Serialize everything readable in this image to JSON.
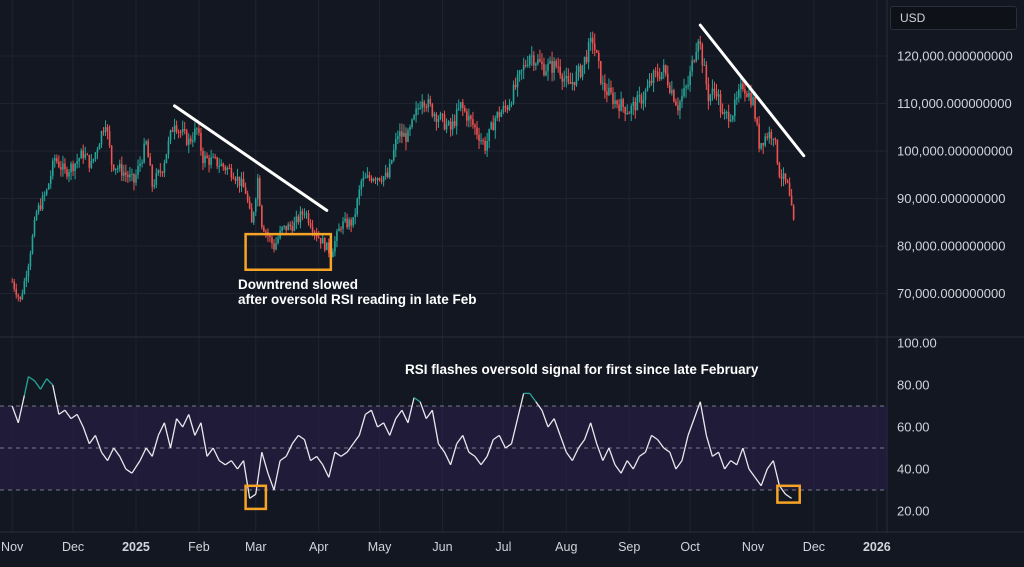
{
  "currency_label": "USD",
  "chart_data": [
    {
      "type": "candlestick",
      "price_axis_ticks": [
        "120,000.000000000",
        "110,000.000000000",
        "100,000.000000000",
        "90,000.000000000",
        "80,000.000000000",
        "70,000.000000000"
      ],
      "ylim": [
        64000,
        128000
      ],
      "x_ticks": [
        "Nov",
        "Dec",
        "2025",
        "Feb",
        "Mar",
        "Apr",
        "May",
        "Jun",
        "Jul",
        "Aug",
        "Sep",
        "Oct",
        "Nov",
        "Dec",
        "2026"
      ],
      "annotation": {
        "line1": "Downtrend slowed",
        "line2": "after oversold RSI reading in late Feb"
      },
      "trendlines": [
        {
          "from": {
            "date": "2025-01-20",
            "value": 109500
          },
          "to": {
            "date": "2025-04-05",
            "value": 87500
          }
        },
        {
          "from": {
            "date": "2025-10-06",
            "value": 126500
          },
          "to": {
            "date": "2025-11-26",
            "value": 99000
          }
        }
      ],
      "highlight": {
        "from": "2025-02-24",
        "to": "2025-04-07",
        "low": 75000,
        "high": 82500
      },
      "closes": [
        [
          "2024-11-01",
          72500
        ],
        [
          "2024-11-05",
          68500
        ],
        [
          "2024-11-09",
          76500
        ],
        [
          "2024-11-13",
          87000
        ],
        [
          "2024-11-18",
          91500
        ],
        [
          "2024-11-22",
          98500
        ],
        [
          "2024-11-27",
          95500
        ],
        [
          "2024-12-02",
          97500
        ],
        [
          "2024-12-06",
          99500
        ],
        [
          "2024-12-10",
          97000
        ],
        [
          "2024-12-17",
          106500
        ],
        [
          "2024-12-20",
          97500
        ],
        [
          "2024-12-26",
          95500
        ],
        [
          "2024-12-31",
          93500
        ],
        [
          "2025-01-06",
          101500
        ],
        [
          "2025-01-09",
          92800
        ],
        [
          "2025-01-14",
          96500
        ],
        [
          "2025-01-20",
          106500
        ],
        [
          "2025-01-22",
          104500
        ],
        [
          "2025-01-27",
          102000
        ],
        [
          "2025-01-31",
          104500
        ],
        [
          "2025-02-03",
          98500
        ],
        [
          "2025-02-10",
          97500
        ],
        [
          "2025-02-18",
          95500
        ],
        [
          "2025-02-24",
          91500
        ],
        [
          "2025-02-27",
          84500
        ],
        [
          "2025-03-02",
          94200
        ],
        [
          "2025-03-04",
          84800
        ],
        [
          "2025-03-10",
          79800
        ],
        [
          "2025-03-14",
          83500
        ],
        [
          "2025-03-20",
          84500
        ],
        [
          "2025-03-25",
          87500
        ],
        [
          "2025-03-31",
          82500
        ],
        [
          "2025-04-07",
          78500
        ],
        [
          "2025-04-12",
          84500
        ],
        [
          "2025-04-18",
          85000
        ],
        [
          "2025-04-22",
          93500
        ],
        [
          "2025-04-28",
          94800
        ],
        [
          "2025-05-05",
          94500
        ],
        [
          "2025-05-10",
          103500
        ],
        [
          "2025-05-15",
          103000
        ],
        [
          "2025-05-22",
          111500
        ],
        [
          "2025-05-27",
          108500
        ],
        [
          "2025-06-05",
          104500
        ],
        [
          "2025-06-10",
          109500
        ],
        [
          "2025-06-17",
          104800
        ],
        [
          "2025-06-22",
          101000
        ],
        [
          "2025-06-27",
          107000
        ],
        [
          "2025-07-03",
          109500
        ],
        [
          "2025-07-10",
          116500
        ],
        [
          "2025-07-14",
          120500
        ],
        [
          "2025-07-21",
          117500
        ],
        [
          "2025-07-28",
          118000
        ],
        [
          "2025-08-02",
          113500
        ],
        [
          "2025-08-08",
          117000
        ],
        [
          "2025-08-14",
          123500
        ],
        [
          "2025-08-19",
          113500
        ],
        [
          "2025-08-25",
          110500
        ],
        [
          "2025-09-01",
          108500
        ],
        [
          "2025-09-08",
          111500
        ],
        [
          "2025-09-13",
          115500
        ],
        [
          "2025-09-18",
          117000
        ],
        [
          "2025-09-25",
          109500
        ],
        [
          "2025-09-30",
          114000
        ],
        [
          "2025-10-05",
          124500
        ],
        [
          "2025-10-10",
          111500
        ],
        [
          "2025-10-14",
          113000
        ],
        [
          "2025-10-17",
          107000
        ],
        [
          "2025-10-22",
          108200
        ],
        [
          "2025-10-27",
          114000
        ],
        [
          "2025-11-01",
          110500
        ],
        [
          "2025-11-04",
          101500
        ],
        [
          "2025-11-08",
          103500
        ],
        [
          "2025-11-11",
          103800
        ],
        [
          "2025-11-14",
          95500
        ],
        [
          "2025-11-18",
          92500
        ],
        [
          "2025-11-21",
          84800
        ]
      ]
    },
    {
      "type": "line",
      "title": "RSI flashes oversold signal for first since late February",
      "rsi_axis_ticks": [
        "100.00",
        "80.00",
        "60.00",
        "40.00",
        "20.00"
      ],
      "ylim": [
        10,
        100
      ],
      "bands": {
        "upper": 70,
        "middle": 50,
        "lower": 30
      },
      "highlights": [
        {
          "from": "2025-02-24",
          "to": "2025-03-06",
          "low": 21,
          "high": 32
        },
        {
          "from": "2025-11-13",
          "to": "2025-11-24",
          "low": 24,
          "high": 32
        }
      ],
      "values": [
        [
          "2024-11-01",
          70
        ],
        [
          "2024-11-04",
          62
        ],
        [
          "2024-11-07",
          75
        ],
        [
          "2024-11-09",
          84
        ],
        [
          "2024-11-12",
          82
        ],
        [
          "2024-11-15",
          78
        ],
        [
          "2024-11-18",
          83
        ],
        [
          "2024-11-21",
          80
        ],
        [
          "2024-11-24",
          66
        ],
        [
          "2024-11-27",
          68
        ],
        [
          "2024-11-30",
          64
        ],
        [
          "2024-12-03",
          66
        ],
        [
          "2024-12-06",
          60
        ],
        [
          "2024-12-09",
          52
        ],
        [
          "2024-12-12",
          56
        ],
        [
          "2024-12-15",
          48
        ],
        [
          "2024-12-18",
          44
        ],
        [
          "2024-12-21",
          50
        ],
        [
          "2024-12-24",
          46
        ],
        [
          "2024-12-27",
          40
        ],
        [
          "2024-12-30",
          38
        ],
        [
          "2025-01-03",
          44
        ],
        [
          "2025-01-06",
          50
        ],
        [
          "2025-01-09",
          46
        ],
        [
          "2025-01-12",
          56
        ],
        [
          "2025-01-15",
          62
        ],
        [
          "2025-01-18",
          50
        ],
        [
          "2025-01-21",
          64
        ],
        [
          "2025-01-24",
          60
        ],
        [
          "2025-01-27",
          66
        ],
        [
          "2025-01-30",
          56
        ],
        [
          "2025-02-02",
          62
        ],
        [
          "2025-02-05",
          46
        ],
        [
          "2025-02-08",
          50
        ],
        [
          "2025-02-11",
          44
        ],
        [
          "2025-02-14",
          42
        ],
        [
          "2025-02-17",
          44
        ],
        [
          "2025-02-20",
          40
        ],
        [
          "2025-02-23",
          44
        ],
        [
          "2025-02-26",
          26
        ],
        [
          "2025-03-01",
          28
        ],
        [
          "2025-03-04",
          48
        ],
        [
          "2025-03-07",
          38
        ],
        [
          "2025-03-10",
          30
        ],
        [
          "2025-03-13",
          44
        ],
        [
          "2025-03-16",
          46
        ],
        [
          "2025-03-19",
          52
        ],
        [
          "2025-03-22",
          56
        ],
        [
          "2025-03-25",
          54
        ],
        [
          "2025-03-28",
          44
        ],
        [
          "2025-03-31",
          46
        ],
        [
          "2025-04-03",
          42
        ],
        [
          "2025-04-06",
          36
        ],
        [
          "2025-04-09",
          48
        ],
        [
          "2025-04-12",
          46
        ],
        [
          "2025-04-15",
          48
        ],
        [
          "2025-04-18",
          52
        ],
        [
          "2025-04-21",
          56
        ],
        [
          "2025-04-24",
          66
        ],
        [
          "2025-04-27",
          68
        ],
        [
          "2025-04-30",
          60
        ],
        [
          "2025-05-03",
          62
        ],
        [
          "2025-05-06",
          56
        ],
        [
          "2025-05-09",
          64
        ],
        [
          "2025-05-12",
          68
        ],
        [
          "2025-05-15",
          62
        ],
        [
          "2025-05-18",
          74
        ],
        [
          "2025-05-21",
          72
        ],
        [
          "2025-05-24",
          64
        ],
        [
          "2025-05-27",
          68
        ],
        [
          "2025-05-30",
          52
        ],
        [
          "2025-06-02",
          48
        ],
        [
          "2025-06-05",
          42
        ],
        [
          "2025-06-08",
          52
        ],
        [
          "2025-06-11",
          56
        ],
        [
          "2025-06-14",
          48
        ],
        [
          "2025-06-17",
          46
        ],
        [
          "2025-06-20",
          42
        ],
        [
          "2025-06-23",
          46
        ],
        [
          "2025-06-26",
          54
        ],
        [
          "2025-06-29",
          56
        ],
        [
          "2025-07-02",
          50
        ],
        [
          "2025-07-05",
          52
        ],
        [
          "2025-07-08",
          64
        ],
        [
          "2025-07-11",
          76
        ],
        [
          "2025-07-14",
          76
        ],
        [
          "2025-07-17",
          72
        ],
        [
          "2025-07-20",
          68
        ],
        [
          "2025-07-23",
          60
        ],
        [
          "2025-07-26",
          64
        ],
        [
          "2025-07-29",
          56
        ],
        [
          "2025-08-01",
          48
        ],
        [
          "2025-08-04",
          44
        ],
        [
          "2025-08-07",
          50
        ],
        [
          "2025-08-10",
          54
        ],
        [
          "2025-08-13",
          62
        ],
        [
          "2025-08-16",
          52
        ],
        [
          "2025-08-19",
          44
        ],
        [
          "2025-08-22",
          50
        ],
        [
          "2025-08-25",
          42
        ],
        [
          "2025-08-28",
          38
        ],
        [
          "2025-08-31",
          44
        ],
        [
          "2025-09-03",
          40
        ],
        [
          "2025-09-06",
          46
        ],
        [
          "2025-09-09",
          48
        ],
        [
          "2025-09-12",
          56
        ],
        [
          "2025-09-15",
          54
        ],
        [
          "2025-09-18",
          50
        ],
        [
          "2025-09-21",
          48
        ],
        [
          "2025-09-24",
          40
        ],
        [
          "2025-09-27",
          44
        ],
        [
          "2025-09-30",
          56
        ],
        [
          "2025-10-03",
          64
        ],
        [
          "2025-10-06",
          72
        ],
        [
          "2025-10-09",
          56
        ],
        [
          "2025-10-12",
          46
        ],
        [
          "2025-10-15",
          48
        ],
        [
          "2025-10-18",
          40
        ],
        [
          "2025-10-21",
          44
        ],
        [
          "2025-10-24",
          42
        ],
        [
          "2025-10-27",
          50
        ],
        [
          "2025-10-30",
          40
        ],
        [
          "2025-11-02",
          36
        ],
        [
          "2025-11-05",
          32
        ],
        [
          "2025-11-08",
          40
        ],
        [
          "2025-11-11",
          44
        ],
        [
          "2025-11-14",
          32
        ],
        [
          "2025-11-17",
          28
        ],
        [
          "2025-11-20",
          26
        ]
      ]
    }
  ]
}
